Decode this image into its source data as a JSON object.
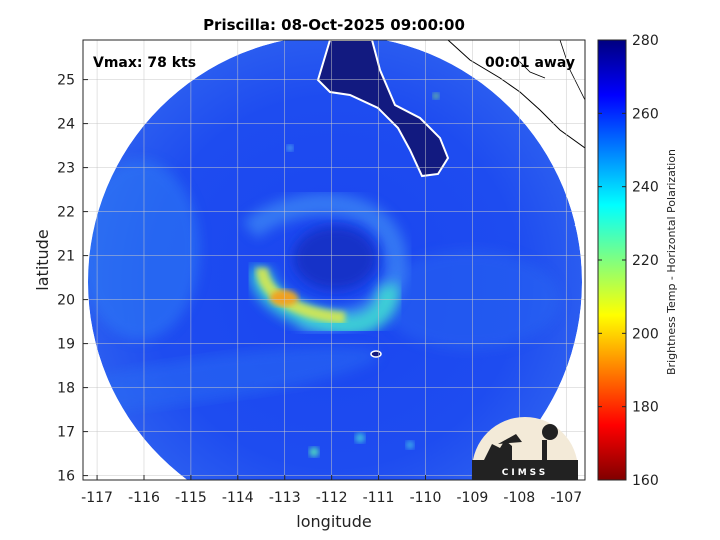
{
  "chart_data": {
    "type": "heatmap",
    "title": "Priscilla: 08-Oct-2025 09:00:00",
    "xlabel": "longitude",
    "ylabel": "latitude",
    "xlim": [
      -117.3,
      -106.6
    ],
    "ylim": [
      15.9,
      25.9
    ],
    "xticks": [
      -117,
      -116,
      -115,
      -114,
      -113,
      -112,
      -111,
      -110,
      -109,
      -108,
      -107
    ],
    "yticks": [
      16,
      17,
      18,
      19,
      20,
      21,
      22,
      23,
      24,
      25
    ],
    "grid": true,
    "colorbar": {
      "label": "Brightness Temp - Horizontal Polarization",
      "range": [
        160,
        280
      ],
      "ticks": [
        160,
        180,
        200,
        220,
        240,
        260,
        280
      ],
      "colormap": "jet"
    },
    "annotations": {
      "vmax": "Vmax: 78 kts",
      "time_offset": "00:01 away"
    },
    "storm_center": {
      "lon": -111.9,
      "lat": 20.9
    },
    "features": [
      {
        "name": "eyewall band",
        "min_temp": 190
      },
      {
        "name": "eye",
        "temp": 265
      }
    ],
    "logo_text": "CIMSS"
  },
  "colors": {
    "ocean_background": "#1f3fe6",
    "land": "#121a80",
    "coast": "#ffffff"
  }
}
